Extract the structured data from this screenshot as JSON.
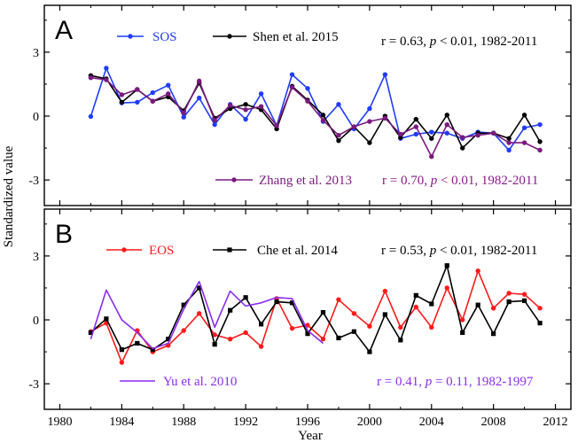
{
  "chart_data": {
    "type": "line",
    "xlabel": "Year",
    "ylabel": "Standardized value",
    "xlim": [
      1979,
      2013
    ],
    "x_ticks": [
      1980,
      1984,
      1988,
      1992,
      1996,
      2000,
      2004,
      2008,
      2012
    ],
    "panels": [
      {
        "letter": "A",
        "ylim": [
          -4.2,
          5.2
        ],
        "y_ticks": [
          3,
          0,
          -3
        ],
        "series": [
          {
            "name": "SOS",
            "color": "#1f3cff",
            "marker": "circle",
            "x": [
              1982,
              1983,
              1984,
              1985,
              1986,
              1987,
              1988,
              1989,
              1990,
              1991,
              1992,
              1993,
              1994,
              1995,
              1996,
              1997,
              1998,
              1999,
              2000,
              2001,
              2002,
              2003,
              2004,
              2005,
              2006,
              2007,
              2008,
              2009,
              2010,
              2011
            ],
            "values": [
              -0.02,
              2.25,
              0.62,
              0.65,
              1.1,
              1.45,
              -0.05,
              0.85,
              -0.4,
              0.55,
              -0.15,
              1.05,
              -0.45,
              1.95,
              1.3,
              -0.25,
              0.55,
              -0.6,
              0.35,
              1.95,
              -1.05,
              -0.85,
              -0.75,
              -0.8,
              -1.05,
              -0.75,
              -0.8,
              -1.6,
              -0.55,
              -0.4
            ]
          },
          {
            "name": "Shen et al. 2015",
            "color": "#000000",
            "marker": "circle",
            "x": [
              1982,
              1983,
              1984,
              1985,
              1986,
              1987,
              1988,
              1989,
              1990,
              1991,
              1992,
              1993,
              1994,
              1995,
              1996,
              1997,
              1998,
              1999,
              2000,
              2001,
              2002,
              2003,
              2004,
              2005,
              2006,
              2007,
              2008,
              2009,
              2010,
              2011
            ],
            "values": [
              1.9,
              1.75,
              0.65,
              1.25,
              0.7,
              0.9,
              0.25,
              1.55,
              -0.1,
              0.35,
              0.55,
              0.3,
              -0.6,
              1.4,
              0.75,
              0.05,
              -1.15,
              -0.5,
              -1.25,
              0.0,
              -1.0,
              -0.15,
              -1.05,
              0.05,
              -1.5,
              -0.8,
              -0.8,
              -1.05,
              0.05,
              -1.2
            ]
          },
          {
            "name": "Zhang et al. 2013",
            "color": "#7a1a7e",
            "marker": "circle",
            "x": [
              1982,
              1983,
              1984,
              1985,
              1986,
              1987,
              1988,
              1989,
              1990,
              1991,
              1992,
              1993,
              1994,
              1995,
              1996,
              1997,
              1998,
              1999,
              2000,
              2001,
              2002,
              2003,
              2004,
              2005,
              2006,
              2007,
              2008,
              2009,
              2010,
              2011
            ],
            "values": [
              1.8,
              1.7,
              1.0,
              1.25,
              0.7,
              1.05,
              0.15,
              1.65,
              -0.2,
              0.5,
              0.3,
              0.45,
              -0.45,
              1.35,
              0.7,
              -0.2,
              -0.9,
              -0.5,
              -0.25,
              -0.1,
              -0.85,
              -0.5,
              -1.9,
              -0.4,
              -1.0,
              -0.9,
              -0.8,
              -1.25,
              -1.25,
              -1.6
            ]
          }
        ],
        "annotations": [
          {
            "text": "r = 0.63,  ",
            "italic_p": "p",
            "rest": " < 0.01, 1982-2011",
            "color": "#000000"
          },
          {
            "text": "r = 0.70,  ",
            "italic_p": "p",
            "rest": " < 0.01, 1982-2011",
            "color": "#8a1a8c"
          }
        ]
      },
      {
        "letter": "B",
        "ylim": [
          -4.2,
          5.2
        ],
        "y_ticks": [
          3,
          0,
          -3
        ],
        "series": [
          {
            "name": "EOS",
            "color": "#ff1a1a",
            "marker": "circle",
            "x": [
              1982,
              1983,
              1984,
              1985,
              1986,
              1987,
              1988,
              1989,
              1990,
              1991,
              1992,
              1993,
              1994,
              1995,
              1996,
              1997,
              1998,
              1999,
              2000,
              2001,
              2002,
              2003,
              2004,
              2005,
              2006,
              2007,
              2008,
              2009,
              2010,
              2011
            ],
            "values": [
              -0.55,
              -0.15,
              -2.0,
              -0.5,
              -1.5,
              -1.2,
              -0.5,
              0.3,
              -0.7,
              -0.9,
              -0.6,
              -1.25,
              1.0,
              -0.4,
              -0.25,
              -0.9,
              0.95,
              0.3,
              -0.3,
              1.35,
              -0.35,
              0.6,
              -0.35,
              1.5,
              0.0,
              2.3,
              0.55,
              1.25,
              1.2,
              0.55
            ]
          },
          {
            "name": "Che et al. 2014",
            "color": "#000000",
            "marker": "square",
            "x": [
              1982,
              1983,
              1984,
              1985,
              1986,
              1987,
              1988,
              1989,
              1990,
              1991,
              1992,
              1993,
              1994,
              1995,
              1996,
              1997,
              1998,
              1999,
              2000,
              2001,
              2002,
              2003,
              2004,
              2005,
              2006,
              2007,
              2008,
              2009,
              2010,
              2011
            ],
            "values": [
              -0.6,
              0.05,
              -1.4,
              -1.1,
              -1.4,
              -0.9,
              0.7,
              1.5,
              -1.15,
              0.45,
              1.05,
              -0.2,
              0.85,
              0.8,
              -0.65,
              0.35,
              -0.85,
              -0.55,
              -1.5,
              0.25,
              -0.95,
              1.15,
              0.75,
              2.55,
              -0.6,
              0.7,
              -0.65,
              0.85,
              0.9,
              -0.15
            ]
          },
          {
            "name": "Yu et al. 2010",
            "color": "#8b2cf0",
            "marker": "none",
            "x": [
              1982,
              1983,
              1984,
              1985,
              1986,
              1987,
              1988,
              1989,
              1990,
              1991,
              1992,
              1993,
              1994,
              1995,
              1996,
              1997
            ],
            "values": [
              -0.9,
              1.4,
              0.0,
              -0.6,
              -1.35,
              -1.1,
              0.5,
              1.8,
              -0.35,
              1.35,
              0.65,
              0.8,
              1.05,
              1.0,
              -0.5,
              -1.1
            ]
          }
        ],
        "annotations": [
          {
            "text": "r = 0.53,  ",
            "italic_p": "p",
            "rest": " < 0.01, 1982-2011",
            "color": "#000000"
          },
          {
            "text": "r = 0.41,  ",
            "italic_p": "p",
            "rest": " = 0.11, 1982-1997",
            "color": "#8b2cf0"
          }
        ]
      }
    ]
  }
}
